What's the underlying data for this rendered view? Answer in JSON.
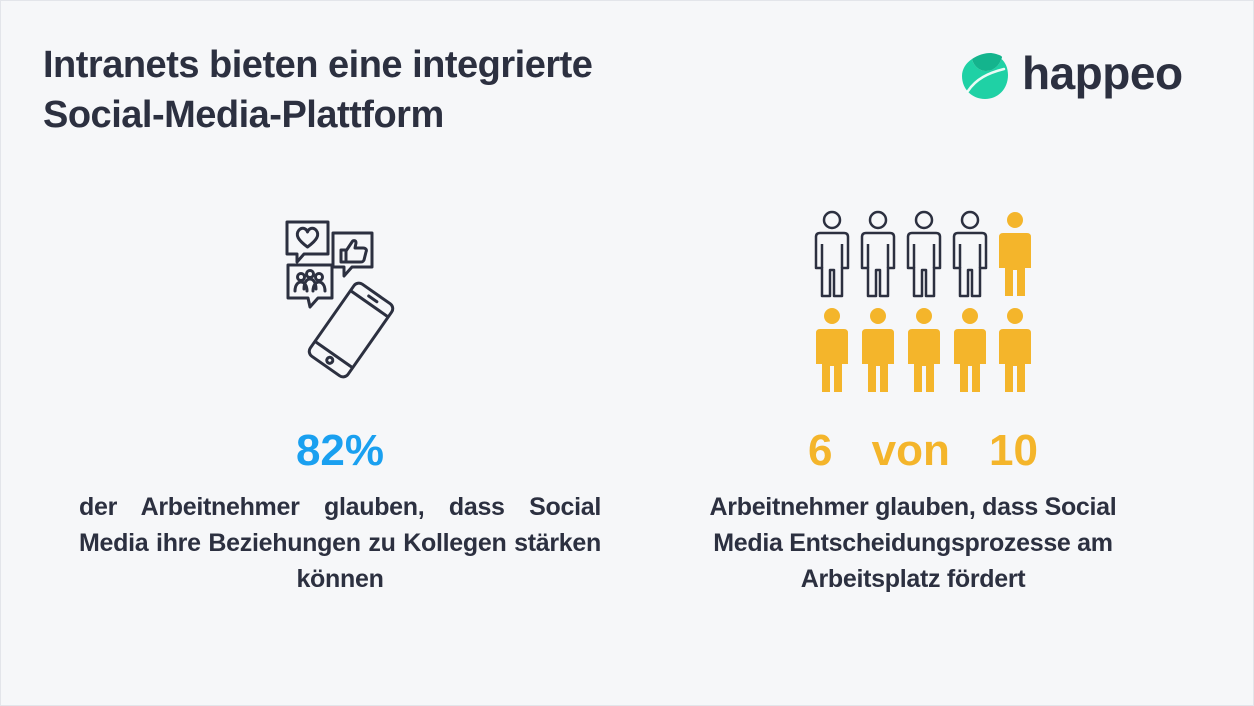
{
  "header": {
    "title_line1": "Intranets bieten eine integrierte",
    "title_line2": "Social-Media-Plattform"
  },
  "logo": {
    "text": "happeo",
    "icon": "leaf-icon",
    "color": "#1fd1a5"
  },
  "left_stat": {
    "value": "82%",
    "icon": "social-media-phone-icon",
    "description": "der Arbeitnehmer glauben, dass Social Media ihre Beziehungen zu Kollegen stärken können",
    "color": "#1aa0f0"
  },
  "right_stat": {
    "number": "6",
    "connector": "von",
    "total": "10",
    "highlighted_people": 6,
    "total_people": 10,
    "description_line1": "Arbeitnehmer glauben, dass Social",
    "description_line2": "Media Entscheidungsprozesse am",
    "description_line3": "Arbeitsplatz fördert",
    "color": "#f4b52b"
  }
}
